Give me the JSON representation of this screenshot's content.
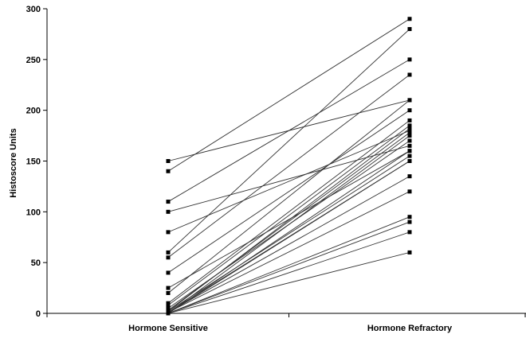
{
  "chart_data": {
    "type": "line",
    "title": "",
    "xlabel": "",
    "ylabel": "Histoscore Units",
    "categories": [
      "Hormone Sensitive",
      "Hormone Refractory"
    ],
    "ylim": [
      0,
      300
    ],
    "yticks": [
      0,
      50,
      100,
      150,
      200,
      250,
      300
    ],
    "grid": false,
    "legend": "none",
    "colors": {
      "line": "#333333",
      "marker": "#000000",
      "axis": "#000000"
    },
    "series": [
      {
        "values": [
          150,
          210
        ]
      },
      {
        "values": [
          140,
          290
        ]
      },
      {
        "values": [
          110,
          250
        ]
      },
      {
        "values": [
          100,
          165
        ]
      },
      {
        "values": [
          80,
          180
        ]
      },
      {
        "values": [
          60,
          280
        ]
      },
      {
        "values": [
          55,
          235
        ]
      },
      {
        "values": [
          40,
          200
        ]
      },
      {
        "values": [
          25,
          160
        ]
      },
      {
        "values": [
          20,
          210
        ]
      },
      {
        "values": [
          10,
          190
        ]
      },
      {
        "values": [
          8,
          185
        ]
      },
      {
        "values": [
          5,
          170
        ]
      },
      {
        "values": [
          3,
          178
        ]
      },
      {
        "values": [
          2,
          182
        ]
      },
      {
        "values": [
          2,
          155
        ]
      },
      {
        "values": [
          1,
          150
        ]
      },
      {
        "values": [
          1,
          135
        ]
      },
      {
        "values": [
          1,
          120
        ]
      },
      {
        "values": [
          0,
          95
        ]
      },
      {
        "values": [
          0,
          90
        ]
      },
      {
        "values": [
          0,
          80
        ]
      },
      {
        "values": [
          0,
          60
        ]
      },
      {
        "values": [
          0,
          175
        ]
      },
      {
        "values": [
          0,
          160
        ]
      },
      {
        "values": [
          0,
          150
        ]
      }
    ]
  }
}
